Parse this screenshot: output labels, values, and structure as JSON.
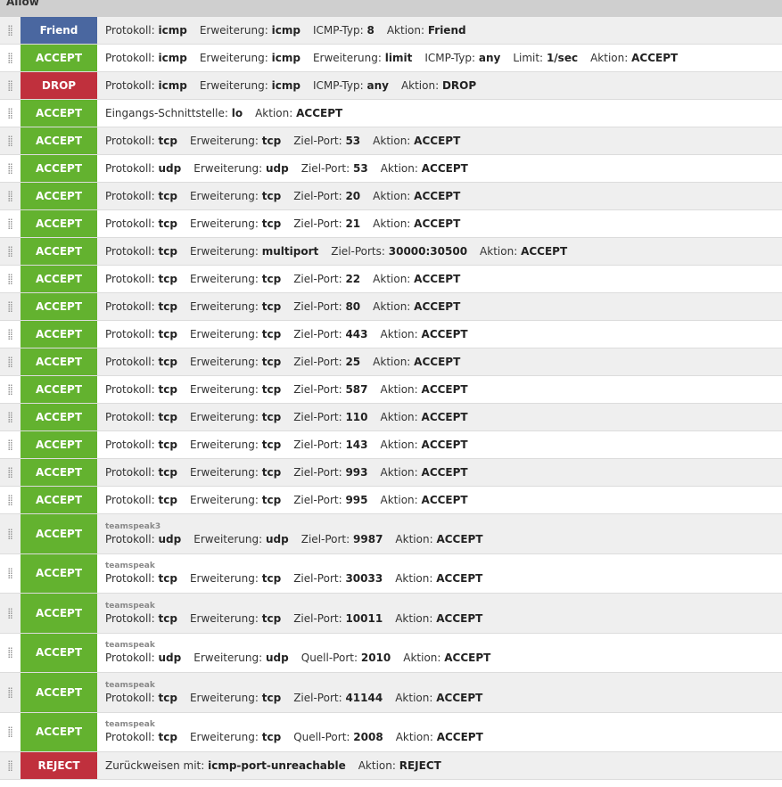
{
  "section_title": "Allow",
  "colors": {
    "Friend": "#4a67a0",
    "ACCEPT": "#63b22f",
    "DROP": "#c0303d",
    "REJECT": "#c0303d"
  },
  "rows": [
    {
      "target": "Friend",
      "fields": [
        [
          "Protokoll:",
          "icmp"
        ],
        [
          "Erweiterung:",
          "icmp"
        ],
        [
          "ICMP-Typ:",
          "8"
        ],
        [
          "Aktion:",
          "Friend"
        ]
      ]
    },
    {
      "target": "ACCEPT",
      "fields": [
        [
          "Protokoll:",
          "icmp"
        ],
        [
          "Erweiterung:",
          "icmp"
        ],
        [
          "Erweiterung:",
          "limit"
        ],
        [
          "ICMP-Typ:",
          "any"
        ],
        [
          "Limit:",
          "1/sec"
        ],
        [
          "Aktion:",
          "ACCEPT"
        ]
      ]
    },
    {
      "target": "DROP",
      "fields": [
        [
          "Protokoll:",
          "icmp"
        ],
        [
          "Erweiterung:",
          "icmp"
        ],
        [
          "ICMP-Typ:",
          "any"
        ],
        [
          "Aktion:",
          "DROP"
        ]
      ]
    },
    {
      "target": "ACCEPT",
      "fields": [
        [
          "Eingangs-Schnittstelle:",
          "lo"
        ],
        [
          "Aktion:",
          "ACCEPT"
        ]
      ]
    },
    {
      "target": "ACCEPT",
      "fields": [
        [
          "Protokoll:",
          "tcp"
        ],
        [
          "Erweiterung:",
          "tcp"
        ],
        [
          "Ziel-Port:",
          "53"
        ],
        [
          "Aktion:",
          "ACCEPT"
        ]
      ]
    },
    {
      "target": "ACCEPT",
      "fields": [
        [
          "Protokoll:",
          "udp"
        ],
        [
          "Erweiterung:",
          "udp"
        ],
        [
          "Ziel-Port:",
          "53"
        ],
        [
          "Aktion:",
          "ACCEPT"
        ]
      ]
    },
    {
      "target": "ACCEPT",
      "fields": [
        [
          "Protokoll:",
          "tcp"
        ],
        [
          "Erweiterung:",
          "tcp"
        ],
        [
          "Ziel-Port:",
          "20"
        ],
        [
          "Aktion:",
          "ACCEPT"
        ]
      ]
    },
    {
      "target": "ACCEPT",
      "fields": [
        [
          "Protokoll:",
          "tcp"
        ],
        [
          "Erweiterung:",
          "tcp"
        ],
        [
          "Ziel-Port:",
          "21"
        ],
        [
          "Aktion:",
          "ACCEPT"
        ]
      ]
    },
    {
      "target": "ACCEPT",
      "fields": [
        [
          "Protokoll:",
          "tcp"
        ],
        [
          "Erweiterung:",
          "multiport"
        ],
        [
          "Ziel-Ports:",
          "30000:30500"
        ],
        [
          "Aktion:",
          "ACCEPT"
        ]
      ]
    },
    {
      "target": "ACCEPT",
      "fields": [
        [
          "Protokoll:",
          "tcp"
        ],
        [
          "Erweiterung:",
          "tcp"
        ],
        [
          "Ziel-Port:",
          "22"
        ],
        [
          "Aktion:",
          "ACCEPT"
        ]
      ]
    },
    {
      "target": "ACCEPT",
      "fields": [
        [
          "Protokoll:",
          "tcp"
        ],
        [
          "Erweiterung:",
          "tcp"
        ],
        [
          "Ziel-Port:",
          "80"
        ],
        [
          "Aktion:",
          "ACCEPT"
        ]
      ]
    },
    {
      "target": "ACCEPT",
      "fields": [
        [
          "Protokoll:",
          "tcp"
        ],
        [
          "Erweiterung:",
          "tcp"
        ],
        [
          "Ziel-Port:",
          "443"
        ],
        [
          "Aktion:",
          "ACCEPT"
        ]
      ]
    },
    {
      "target": "ACCEPT",
      "fields": [
        [
          "Protokoll:",
          "tcp"
        ],
        [
          "Erweiterung:",
          "tcp"
        ],
        [
          "Ziel-Port:",
          "25"
        ],
        [
          "Aktion:",
          "ACCEPT"
        ]
      ]
    },
    {
      "target": "ACCEPT",
      "fields": [
        [
          "Protokoll:",
          "tcp"
        ],
        [
          "Erweiterung:",
          "tcp"
        ],
        [
          "Ziel-Port:",
          "587"
        ],
        [
          "Aktion:",
          "ACCEPT"
        ]
      ]
    },
    {
      "target": "ACCEPT",
      "fields": [
        [
          "Protokoll:",
          "tcp"
        ],
        [
          "Erweiterung:",
          "tcp"
        ],
        [
          "Ziel-Port:",
          "110"
        ],
        [
          "Aktion:",
          "ACCEPT"
        ]
      ]
    },
    {
      "target": "ACCEPT",
      "fields": [
        [
          "Protokoll:",
          "tcp"
        ],
        [
          "Erweiterung:",
          "tcp"
        ],
        [
          "Ziel-Port:",
          "143"
        ],
        [
          "Aktion:",
          "ACCEPT"
        ]
      ]
    },
    {
      "target": "ACCEPT",
      "fields": [
        [
          "Protokoll:",
          "tcp"
        ],
        [
          "Erweiterung:",
          "tcp"
        ],
        [
          "Ziel-Port:",
          "993"
        ],
        [
          "Aktion:",
          "ACCEPT"
        ]
      ]
    },
    {
      "target": "ACCEPT",
      "fields": [
        [
          "Protokoll:",
          "tcp"
        ],
        [
          "Erweiterung:",
          "tcp"
        ],
        [
          "Ziel-Port:",
          "995"
        ],
        [
          "Aktion:",
          "ACCEPT"
        ]
      ]
    },
    {
      "target": "ACCEPT",
      "comment": "teamspeak3",
      "fields": [
        [
          "Protokoll:",
          "udp"
        ],
        [
          "Erweiterung:",
          "udp"
        ],
        [
          "Ziel-Port:",
          "9987"
        ],
        [
          "Aktion:",
          "ACCEPT"
        ]
      ]
    },
    {
      "target": "ACCEPT",
      "comment": "teamspeak",
      "fields": [
        [
          "Protokoll:",
          "tcp"
        ],
        [
          "Erweiterung:",
          "tcp"
        ],
        [
          "Ziel-Port:",
          "30033"
        ],
        [
          "Aktion:",
          "ACCEPT"
        ]
      ]
    },
    {
      "target": "ACCEPT",
      "comment": "teamspeak",
      "fields": [
        [
          "Protokoll:",
          "tcp"
        ],
        [
          "Erweiterung:",
          "tcp"
        ],
        [
          "Ziel-Port:",
          "10011"
        ],
        [
          "Aktion:",
          "ACCEPT"
        ]
      ]
    },
    {
      "target": "ACCEPT",
      "comment": "teamspeak",
      "fields": [
        [
          "Protokoll:",
          "udp"
        ],
        [
          "Erweiterung:",
          "udp"
        ],
        [
          "Quell-Port:",
          "2010"
        ],
        [
          "Aktion:",
          "ACCEPT"
        ]
      ]
    },
    {
      "target": "ACCEPT",
      "comment": "teamspeak",
      "fields": [
        [
          "Protokoll:",
          "tcp"
        ],
        [
          "Erweiterung:",
          "tcp"
        ],
        [
          "Ziel-Port:",
          "41144"
        ],
        [
          "Aktion:",
          "ACCEPT"
        ]
      ]
    },
    {
      "target": "ACCEPT",
      "comment": "teamspeak",
      "fields": [
        [
          "Protokoll:",
          "tcp"
        ],
        [
          "Erweiterung:",
          "tcp"
        ],
        [
          "Quell-Port:",
          "2008"
        ],
        [
          "Aktion:",
          "ACCEPT"
        ]
      ]
    },
    {
      "target": "REJECT",
      "fields": [
        [
          "Zurückweisen mit:",
          "icmp-port-unreachable"
        ],
        [
          "Aktion:",
          "REJECT"
        ]
      ]
    }
  ]
}
